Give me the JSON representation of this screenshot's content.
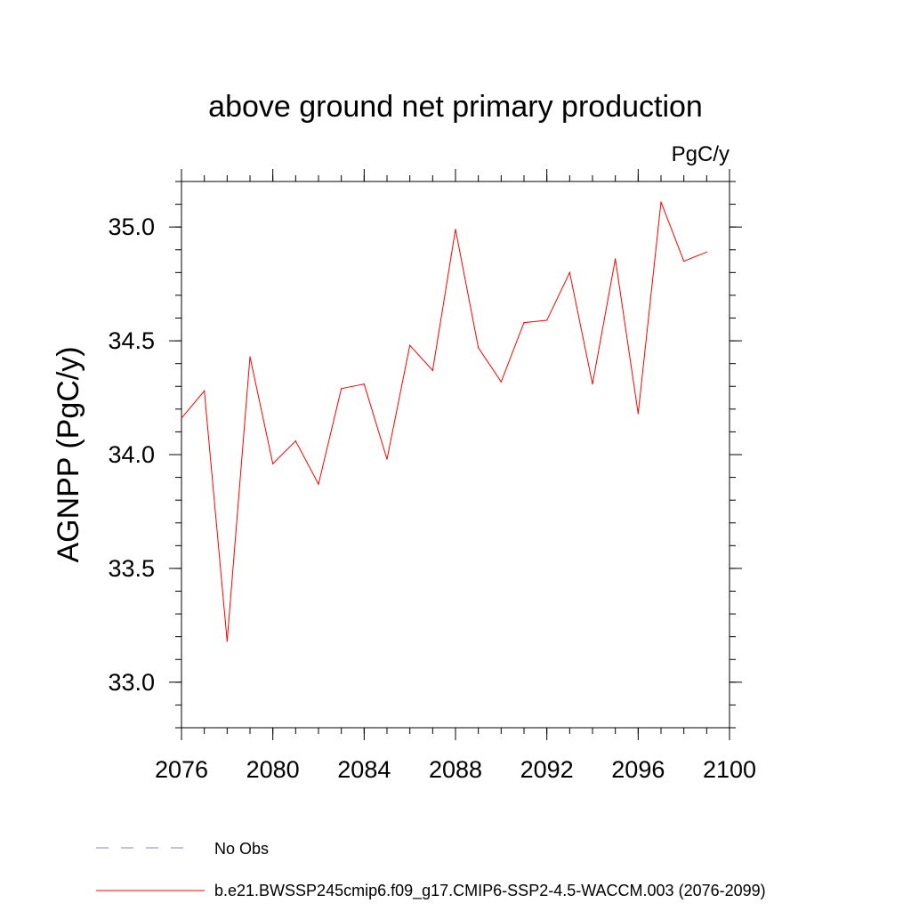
{
  "chart_data": {
    "type": "line",
    "title": "above ground net primary production",
    "units_label": "PgC/y",
    "ylabel": "AGNPP  (PgC/y)",
    "xlabel": "",
    "xlim": [
      2076,
      2100
    ],
    "ylim": [
      32.8,
      35.2
    ],
    "x_ticks": [
      2076,
      2080,
      2084,
      2088,
      2092,
      2096,
      2100
    ],
    "x_tick_labels": [
      "2076",
      "2080",
      "2084",
      "2088",
      "2092",
      "2096",
      "2100"
    ],
    "y_ticks": [
      33.0,
      33.5,
      34.0,
      34.5,
      35.0
    ],
    "y_tick_labels": [
      "33.0",
      "33.5",
      "34.0",
      "34.5",
      "35.0"
    ],
    "x_minor_step": 1,
    "y_minor_step": 0.1,
    "grid": false,
    "legend_position": "bottom",
    "series": [
      {
        "name": "b.e21.BWSSP245cmip6.f09_g17.CMIP6-SSP2-4.5-WACCM.003 (2076-2099)",
        "color": "#ff0000",
        "x": [
          2076,
          2077,
          2078,
          2079,
          2080,
          2081,
          2082,
          2083,
          2084,
          2085,
          2086,
          2087,
          2088,
          2089,
          2090,
          2091,
          2092,
          2093,
          2094,
          2095,
          2096,
          2097,
          2098,
          2099
        ],
        "y": [
          34.16,
          34.28,
          33.18,
          34.43,
          33.96,
          34.06,
          33.87,
          34.29,
          34.31,
          33.98,
          34.48,
          34.37,
          34.99,
          34.47,
          34.32,
          34.58,
          34.59,
          34.8,
          34.31,
          34.86,
          34.18,
          35.11,
          34.85,
          34.89
        ]
      }
    ],
    "legend": [
      {
        "label": "No Obs",
        "style": "dashed",
        "color": "#8a7fc7"
      },
      {
        "label": "b.e21.BWSSP245cmip6.f09_g17.CMIP6-SSP2-4.5-WACCM.003 (2076-2099)",
        "style": "solid",
        "color": "#ff0000"
      }
    ]
  }
}
